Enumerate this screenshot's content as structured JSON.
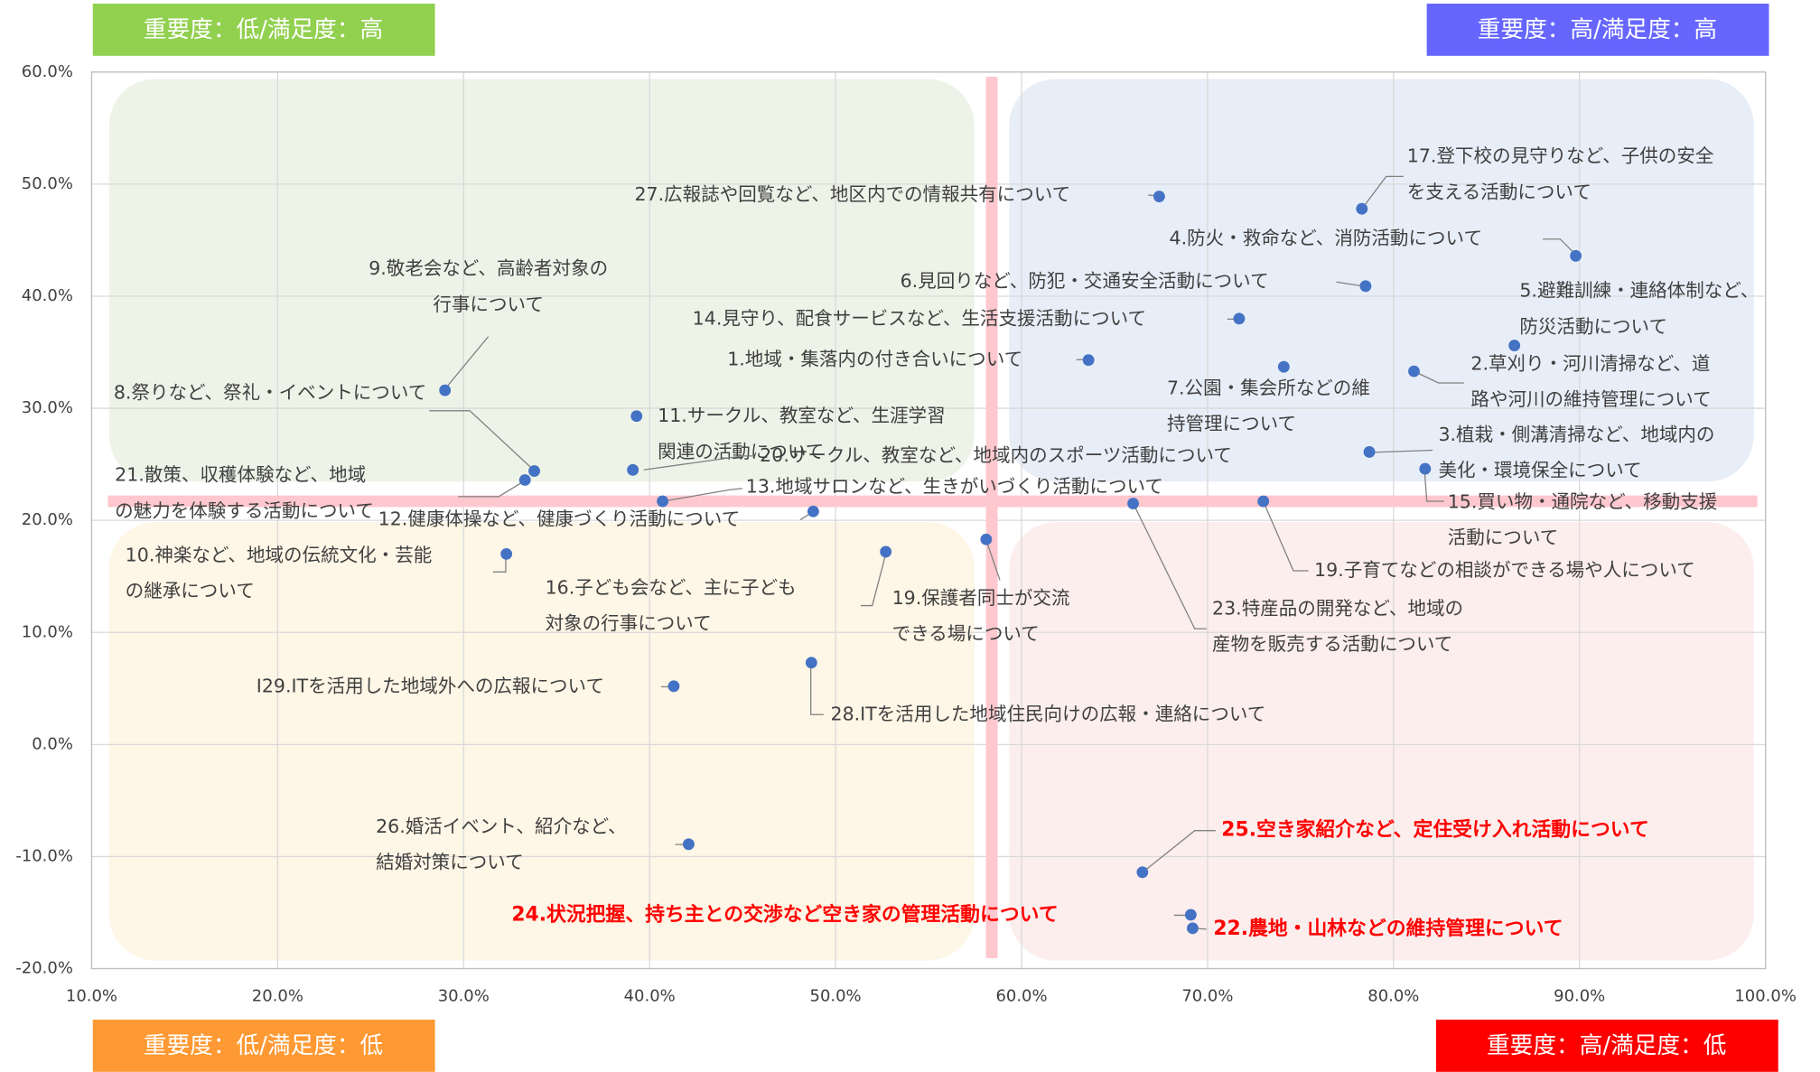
{
  "chart_data": {
    "type": "scatter",
    "xlim": [
      10,
      100
    ],
    "ylim": [
      -20,
      60
    ],
    "xticks": [
      {
        "value": 10,
        "label": "10.0%"
      },
      {
        "value": 20,
        "label": "20.0%"
      },
      {
        "value": 30,
        "label": "30.0%"
      },
      {
        "value": 40,
        "label": "40.0%"
      },
      {
        "value": 50,
        "label": "50.0%"
      },
      {
        "value": 60,
        "label": "60.0%"
      },
      {
        "value": 70,
        "label": "70.0%"
      },
      {
        "value": 80,
        "label": "80.0%"
      },
      {
        "value": 90,
        "label": "90.0%"
      },
      {
        "value": 100,
        "label": "100.0%"
      }
    ],
    "yticks": [
      {
        "value": -20,
        "label": "-20.0%"
      },
      {
        "value": -10,
        "label": "-10.0%"
      },
      {
        "value": 0,
        "label": "0.0%"
      },
      {
        "value": 10,
        "label": "10.0%"
      },
      {
        "value": 20,
        "label": "20.0%"
      },
      {
        "value": 30,
        "label": "30.0%"
      },
      {
        "value": 40,
        "label": "40.0%"
      },
      {
        "value": 50,
        "label": "50.0%"
      },
      {
        "value": 60,
        "label": "60.0%"
      }
    ],
    "grid": true,
    "color": "#4472c4",
    "highlight_color": "#ff0000",
    "reference_lines": {
      "x": 58.4,
      "y": 21.7,
      "color": "#ffc7ce"
    },
    "quadrants": [
      {
        "label": "重要度：低/満足度：高",
        "color": "#92d050",
        "background": "#eef3e8"
      },
      {
        "label": "重要度：高/満足度：高",
        "color": "#6666ff",
        "background": "#e8eef7"
      },
      {
        "label": "重要度：低/満足度：低",
        "color": "#ff9933",
        "background": "#fef6e6"
      },
      {
        "label": "重要度：高/満足度：低",
        "color": "#ff0000",
        "background": "#fdeeee"
      }
    ],
    "points": [
      {
        "x": 67.4,
        "y": 48.9,
        "label": [
          "27.広報誌や回覧など、地区内での情報共有について"
        ]
      },
      {
        "x": 78.3,
        "y": 47.8,
        "label": [
          "17.登下校の見守りなど、子供の安全",
          "を支える活動について"
        ]
      },
      {
        "x": 89.8,
        "y": 43.6,
        "label": [
          "4.防火・救命など、消防活動について"
        ]
      },
      {
        "x": 78.5,
        "y": 40.9,
        "label": [
          "6.見回りなど、防犯・交通安全活動について"
        ]
      },
      {
        "x": 71.7,
        "y": 38.0,
        "label": [
          "14.見守り、配食サービスなど、生活支援活動について"
        ]
      },
      {
        "x": 63.6,
        "y": 34.3,
        "label": [
          "1.地域・集落内の付き合いについて"
        ]
      },
      {
        "x": 86.5,
        "y": 35.6,
        "label": [
          "5.避難訓練・連絡体制など、",
          "防災活動について"
        ]
      },
      {
        "x": 74.1,
        "y": 33.7,
        "label": [
          "7.公園・集会所などの維",
          "持管理について"
        ]
      },
      {
        "x": 81.1,
        "y": 33.3,
        "label": [
          "2.草刈り・河川清掃など、道",
          "路や河川の維持管理について"
        ]
      },
      {
        "x": 29.0,
        "y": 31.6,
        "label": [
          "9.敬老会など、高齢者対象の",
          "行事について"
        ]
      },
      {
        "x": 39.3,
        "y": 29.3,
        "label": [
          "8.祭りなど、祭礼・イベントについて"
        ]
      },
      {
        "x": 33.8,
        "y": 24.4,
        "label": [
          "21.散策、収穫体験など、地域",
          "の魅力を体験する活動について"
        ]
      },
      {
        "x": 33.3,
        "y": 23.6,
        "label": [
          "11.サークル、教室など、生涯学習",
          "関連の活動について"
        ]
      },
      {
        "x": 39.1,
        "y": 24.5,
        "label": [
          "20.サークル、教室など、地域内のスポーツ活動について"
        ]
      },
      {
        "x": 78.7,
        "y": 26.1,
        "label": [
          "3.植栽・側溝清掃など、地域内の",
          "美化・環境保全について"
        ]
      },
      {
        "x": 40.7,
        "y": 21.7,
        "label": [
          "13.地域サロンなど、生きがいづくり活動について"
        ]
      },
      {
        "x": 81.7,
        "y": 24.6,
        "label": [
          "15.買い物・通院など、移動支援",
          "活動について"
        ]
      },
      {
        "x": 48.8,
        "y": 20.8,
        "label": [
          "12.健康体操など、健康づくり活動について"
        ]
      },
      {
        "x": 73.0,
        "y": 21.7,
        "label": [
          "19.子育てなどの相談ができる場や人について"
        ]
      },
      {
        "x": 66.0,
        "y": 21.5,
        "label": [
          "23.特産品の開発など、地域の",
          "産物を販売する活動について"
        ]
      },
      {
        "x": 32.3,
        "y": 17.0,
        "label": [
          "10.神楽など、地域の伝統文化・芸能",
          "の継承について"
        ]
      },
      {
        "x": 52.7,
        "y": 17.2,
        "label": [
          "16.子ども会など、主に子ども",
          "対象の行事について"
        ]
      },
      {
        "x": 58.1,
        "y": 18.3,
        "label": [
          "19.保護者同士が交流",
          "できる場について"
        ]
      },
      {
        "x": 41.3,
        "y": 5.2,
        "label": [
          "I29.ITを活用した地域外への広報について"
        ]
      },
      {
        "x": 48.7,
        "y": 7.3,
        "label": [
          "28.ITを活用した地域住民向けの広報・連絡について"
        ]
      },
      {
        "x": 42.1,
        "y": -8.9,
        "label": [
          "26.婚活イベント、紹介など、",
          "結婚対策について"
        ]
      },
      {
        "x": 66.5,
        "y": -11.4,
        "label": [
          "25.空き家紹介など、定住受け入れ活動について"
        ],
        "highlight": true
      },
      {
        "x": 69.1,
        "y": -15.2,
        "label": [
          "24.状況把握、持ち主との交渉など空き家の管理活動について"
        ],
        "highlight": true
      },
      {
        "x": 69.2,
        "y": -16.4,
        "label": [
          "22.農地・山林などの維持管理について"
        ],
        "highlight": true
      }
    ]
  }
}
